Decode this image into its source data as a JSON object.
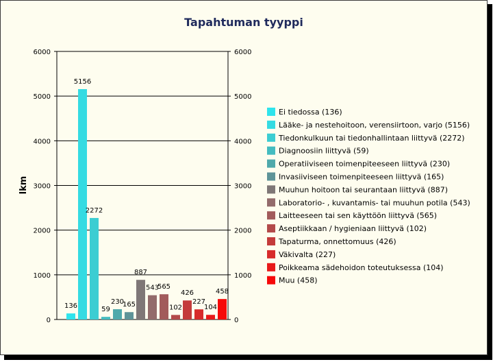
{
  "chart_data": {
    "type": "bar",
    "title": "Tapahtuman tyyppi",
    "ylabel": "lkm",
    "ylim": [
      0,
      6000
    ],
    "yticks": [
      0,
      1000,
      2000,
      3000,
      4000,
      5000,
      6000
    ],
    "grid": true,
    "legend_position": "right",
    "series": [
      {
        "name": "Ei tiedossa (136)",
        "value": 136,
        "color": "#2fe4ec"
      },
      {
        "name": "Lääke- ja nestehoitoon, verensiirtoon, varjo (5156)",
        "value": 5156,
        "color": "#35dbe2"
      },
      {
        "name": "Tiedonkulkuun tai tiedonhallintaan liittyvä (2272)",
        "value": 2272,
        "color": "#3ccdd2"
      },
      {
        "name": "Diagnoosiin liittyvä (59)",
        "value": 59,
        "color": "#44bcc0"
      },
      {
        "name": "Operatiiviseen toimenpiteeseen liittyvä (230)",
        "value": 230,
        "color": "#4fa9ab"
      },
      {
        "name": "Invasiiviseen toimenpiteeseen liittyvä (165)",
        "value": 165,
        "color": "#5e9498"
      },
      {
        "name": "Muuhun hoitoon tai seurantaan liittyvä (887)",
        "value": 887,
        "color": "#7f7777"
      },
      {
        "name": "Laboratorio- , kuvantamis- tai muuhun potila (543)",
        "value": 543,
        "color": "#936b6b"
      },
      {
        "name": "Laitteeseen tai sen käyttöön liittyvä (565)",
        "value": 565,
        "color": "#a25b5b"
      },
      {
        "name": "Aseptiikkaan / hygieniaan liittyvä (102)",
        "value": 102,
        "color": "#b34a4a"
      },
      {
        "name": "Tapaturma, onnettomuus (426)",
        "value": 426,
        "color": "#c43b3b"
      },
      {
        "name": "Väkivalta  (227)",
        "value": 227,
        "color": "#d72b2b"
      },
      {
        "name": "Poikkeama sädehoidon toteutuksessa (104)",
        "value": 104,
        "color": "#e81a1a"
      },
      {
        "name": "Muu (458)",
        "value": 458,
        "color": "#f60909"
      }
    ]
  }
}
